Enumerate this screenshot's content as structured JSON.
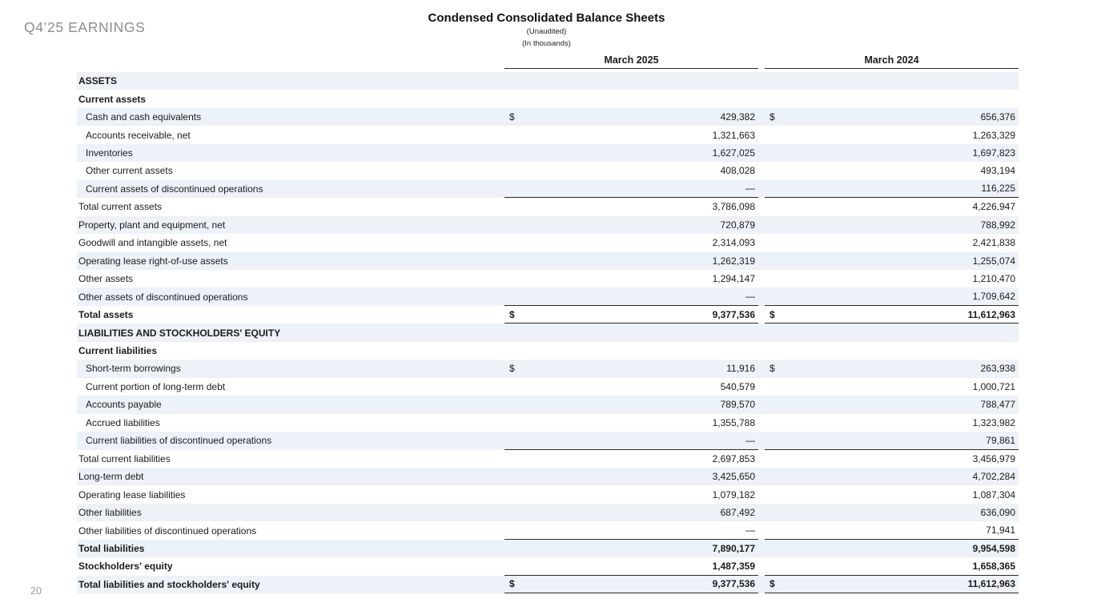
{
  "slide": {
    "eyebrow": "Q4’25 EARNINGS",
    "page_number": "20"
  },
  "colors": {
    "stripe": "#edf1f8",
    "text": "#1b1b1b",
    "eyebrow_gray": "#8c8c8c",
    "rule": "#2a2a2a"
  },
  "table": {
    "title": "Condensed Consolidated Balance Sheets",
    "subtitle1": "(Unaudited)",
    "subtitle2": "(In thousands)",
    "columns": [
      "March 2025",
      "March 2024"
    ],
    "rows": [
      {
        "label": "ASSETS",
        "bold": true,
        "indent": false,
        "dollar": false,
        "v1": "",
        "v2": "",
        "underline": false
      },
      {
        "label": "Current assets",
        "bold": true,
        "indent": false,
        "dollar": false,
        "v1": "",
        "v2": "",
        "underline": false
      },
      {
        "label": "Cash and cash equivalents",
        "bold": false,
        "indent": true,
        "dollar": true,
        "v1": "429,382",
        "v2": "656,376",
        "underline": false
      },
      {
        "label": "Accounts receivable, net",
        "bold": false,
        "indent": true,
        "dollar": false,
        "v1": "1,321,663",
        "v2": "1,263,329",
        "underline": false
      },
      {
        "label": "Inventories",
        "bold": false,
        "indent": true,
        "dollar": false,
        "v1": "1,627,025",
        "v2": "1,697,823",
        "underline": false
      },
      {
        "label": "Other current assets",
        "bold": false,
        "indent": true,
        "dollar": false,
        "v1": "408,028",
        "v2": "493,194",
        "underline": false
      },
      {
        "label": "Current assets of discontinued operations",
        "bold": false,
        "indent": true,
        "dollar": false,
        "v1": "—",
        "v2": "116,225",
        "underline": true
      },
      {
        "label": "Total current assets",
        "bold": false,
        "indent": false,
        "dollar": false,
        "v1": "3,786,098",
        "v2": "4,226,947",
        "underline": false
      },
      {
        "label": "Property, plant and equipment, net",
        "bold": false,
        "indent": false,
        "dollar": false,
        "v1": "720,879",
        "v2": "788,992",
        "underline": false
      },
      {
        "label": "Goodwill and intangible assets, net",
        "bold": false,
        "indent": false,
        "dollar": false,
        "v1": "2,314,093",
        "v2": "2,421,838",
        "underline": false
      },
      {
        "label": "Operating lease right-of-use assets",
        "bold": false,
        "indent": false,
        "dollar": false,
        "v1": "1,262,319",
        "v2": "1,255,074",
        "underline": false
      },
      {
        "label": "Other assets",
        "bold": false,
        "indent": false,
        "dollar": false,
        "v1": "1,294,147",
        "v2": "1,210,470",
        "underline": false
      },
      {
        "label": "Other assets of discontinued operations",
        "bold": false,
        "indent": false,
        "dollar": false,
        "v1": "—",
        "v2": "1,709,642",
        "underline": true
      },
      {
        "label": "Total assets",
        "bold": true,
        "indent": false,
        "dollar": true,
        "v1": "9,377,536",
        "v2": "11,612,963",
        "underline": true
      },
      {
        "label": "LIABILITIES AND STOCKHOLDERS' EQUITY",
        "bold": true,
        "indent": false,
        "dollar": false,
        "v1": "",
        "v2": "",
        "underline": false
      },
      {
        "label": "Current liabilities",
        "bold": true,
        "indent": false,
        "dollar": false,
        "v1": "",
        "v2": "",
        "underline": false
      },
      {
        "label": "Short-term borrowings",
        "bold": false,
        "indent": true,
        "dollar": true,
        "v1": "11,916",
        "v2": "263,938",
        "underline": false
      },
      {
        "label": "Current portion of long-term debt",
        "bold": false,
        "indent": true,
        "dollar": false,
        "v1": "540,579",
        "v2": "1,000,721",
        "underline": false
      },
      {
        "label": "Accounts payable",
        "bold": false,
        "indent": true,
        "dollar": false,
        "v1": "789,570",
        "v2": "788,477",
        "underline": false
      },
      {
        "label": "Accrued liabilities",
        "bold": false,
        "indent": true,
        "dollar": false,
        "v1": "1,355,788",
        "v2": "1,323,982",
        "underline": false
      },
      {
        "label": "Current liabilities of discontinued operations",
        "bold": false,
        "indent": true,
        "dollar": false,
        "v1": "—",
        "v2": "79,861",
        "underline": true
      },
      {
        "label": "Total current liabilities",
        "bold": false,
        "indent": false,
        "dollar": false,
        "v1": "2,697,853",
        "v2": "3,456,979",
        "underline": false
      },
      {
        "label": "Long-term debt",
        "bold": false,
        "indent": false,
        "dollar": false,
        "v1": "3,425,650",
        "v2": "4,702,284",
        "underline": false
      },
      {
        "label": "Operating lease liabilities",
        "bold": false,
        "indent": false,
        "dollar": false,
        "v1": "1,079,182",
        "v2": "1,087,304",
        "underline": false
      },
      {
        "label": "Other liabilities",
        "bold": false,
        "indent": false,
        "dollar": false,
        "v1": "687,492",
        "v2": "636,090",
        "underline": false
      },
      {
        "label": "Other liabilities of discontinued operations",
        "bold": false,
        "indent": false,
        "dollar": false,
        "v1": "—",
        "v2": "71,941",
        "underline": true
      },
      {
        "label": "Total liabilities",
        "bold": true,
        "indent": false,
        "dollar": false,
        "v1": "7,890,177",
        "v2": "9,954,598",
        "underline": false
      },
      {
        "label": "Stockholders' equity",
        "bold": true,
        "indent": false,
        "dollar": false,
        "v1": "1,487,359",
        "v2": "1,658,365",
        "underline": true
      },
      {
        "label": "Total liabilities and stockholders' equity",
        "bold": true,
        "indent": false,
        "dollar": true,
        "v1": "9,377,536",
        "v2": "11,612,963",
        "underline": true
      }
    ]
  }
}
